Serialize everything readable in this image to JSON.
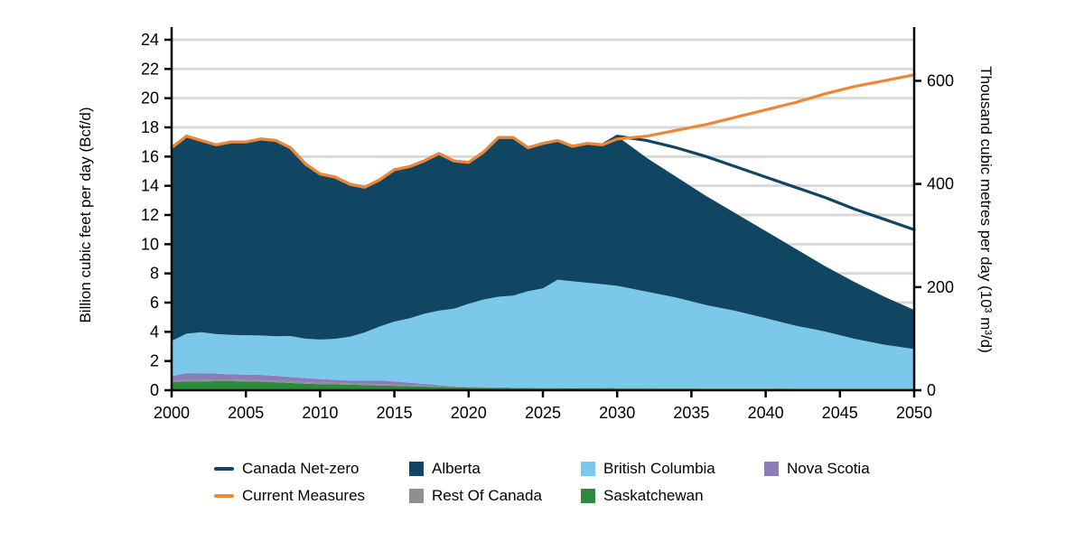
{
  "chart_data": {
    "type": "area",
    "title": "",
    "x_axis": {
      "label": "",
      "min": 2000,
      "max": 2050,
      "ticks": [
        2000,
        2005,
        2010,
        2015,
        2020,
        2025,
        2030,
        2035,
        2040,
        2045,
        2050
      ]
    },
    "y_left": {
      "label": "Billion cubic feet per day (Bcf/d)",
      "min": 0,
      "max": 24,
      "ticks": [
        0,
        2,
        4,
        6,
        8,
        10,
        12,
        14,
        16,
        18,
        20,
        22,
        24
      ]
    },
    "y_right": {
      "label": "Thousand cubic metres per day (10³ m³/d)",
      "ticks": [
        0,
        200,
        400,
        600
      ],
      "units_per_bcf": 28.32
    },
    "style": {
      "grid_color": "#d9d9d9",
      "axis_color": "#000000",
      "background": "#ffffff"
    },
    "years": [
      2000,
      2001,
      2002,
      2003,
      2004,
      2005,
      2006,
      2007,
      2008,
      2009,
      2010,
      2011,
      2012,
      2013,
      2014,
      2015,
      2016,
      2017,
      2018,
      2019,
      2020,
      2021,
      2022,
      2023,
      2024,
      2025,
      2026,
      2027,
      2028,
      2029,
      2030,
      2032,
      2034,
      2036,
      2038,
      2040,
      2042,
      2044,
      2046,
      2048,
      2050
    ],
    "areas": [
      {
        "name": "Saskatchewan",
        "color": "#2b8a3c",
        "values": [
          0.55,
          0.6,
          0.6,
          0.62,
          0.62,
          0.6,
          0.58,
          0.55,
          0.5,
          0.45,
          0.42,
          0.4,
          0.38,
          0.35,
          0.33,
          0.3,
          0.27,
          0.25,
          0.22,
          0.2,
          0.18,
          0.17,
          0.16,
          0.15,
          0.15,
          0.14,
          0.14,
          0.13,
          0.13,
          0.13,
          0.12,
          0.12,
          0.12,
          0.11,
          0.11,
          0.11,
          0.1,
          0.1,
          0.1,
          0.1,
          0.1
        ]
      },
      {
        "name": "Rest Of Canada",
        "color": "#8f8f8f",
        "values": [
          0.12,
          0.12,
          0.12,
          0.12,
          0.12,
          0.12,
          0.12,
          0.11,
          0.11,
          0.1,
          0.1,
          0.1,
          0.09,
          0.09,
          0.08,
          0.08,
          0.07,
          0.06,
          0.05,
          0.05,
          0.04,
          0.04,
          0.04,
          0.03,
          0.03,
          0.03,
          0.03,
          0.03,
          0.03,
          0.03,
          0.03,
          0.03,
          0.02,
          0.02,
          0.02,
          0.02,
          0.02,
          0.02,
          0.02,
          0.02,
          0.02
        ]
      },
      {
        "name": "Nova Scotia",
        "color": "#8d7cba",
        "values": [
          0.3,
          0.45,
          0.45,
          0.4,
          0.35,
          0.35,
          0.35,
          0.33,
          0.3,
          0.28,
          0.25,
          0.22,
          0.2,
          0.22,
          0.25,
          0.22,
          0.18,
          0.12,
          0.08,
          0.03,
          0,
          0,
          0,
          0,
          0,
          0,
          0,
          0,
          0,
          0,
          0,
          0,
          0,
          0,
          0,
          0,
          0,
          0,
          0,
          0,
          0
        ]
      },
      {
        "name": "British Columbia",
        "color": "#7cc8ea",
        "values": [
          2.4,
          2.7,
          2.8,
          2.7,
          2.7,
          2.7,
          2.7,
          2.7,
          2.8,
          2.7,
          2.7,
          2.8,
          3.0,
          3.3,
          3.7,
          4.1,
          4.4,
          4.8,
          5.1,
          5.3,
          5.7,
          6.0,
          6.2,
          6.3,
          6.6,
          6.8,
          7.4,
          7.3,
          7.2,
          7.1,
          7.0,
          6.6,
          6.2,
          5.7,
          5.3,
          4.8,
          4.3,
          3.9,
          3.4,
          3.0,
          2.7
        ]
      },
      {
        "name": "Alberta",
        "color": "#114663",
        "values": [
          13.23,
          13.53,
          13.13,
          12.96,
          13.21,
          13.23,
          13.45,
          13.41,
          12.89,
          11.97,
          11.33,
          11.08,
          10.43,
          9.94,
          10.04,
          10.4,
          10.38,
          10.47,
          10.75,
          10.12,
          9.68,
          10.09,
          10.9,
          10.82,
          9.82,
          9.93,
          9.53,
          9.24,
          9.54,
          9.54,
          10.25,
          9.15,
          8.26,
          7.47,
          6.67,
          5.97,
          5.28,
          4.48,
          3.88,
          3.28,
          2.68
        ]
      }
    ],
    "lines": [
      {
        "name": "Canada Net-zero",
        "color": "#114663",
        "values": [
          16.6,
          17.4,
          17.1,
          16.8,
          17.0,
          17.0,
          17.2,
          17.1,
          16.6,
          15.5,
          14.8,
          14.6,
          14.1,
          13.9,
          14.4,
          15.1,
          15.3,
          15.7,
          16.2,
          15.7,
          15.6,
          16.3,
          17.3,
          17.3,
          16.6,
          16.9,
          17.1,
          16.7,
          16.9,
          16.8,
          17.4,
          17.1,
          16.6,
          16.0,
          15.3,
          14.6,
          13.9,
          13.2,
          12.4,
          11.7,
          11.0
        ]
      },
      {
        "name": "Current Measures",
        "color": "#ef8633",
        "values": [
          16.6,
          17.4,
          17.1,
          16.8,
          17.0,
          17.0,
          17.2,
          17.1,
          16.6,
          15.5,
          14.8,
          14.6,
          14.1,
          13.9,
          14.4,
          15.1,
          15.3,
          15.7,
          16.2,
          15.7,
          15.6,
          16.3,
          17.3,
          17.3,
          16.6,
          16.9,
          17.1,
          16.7,
          16.9,
          16.8,
          17.2,
          17.4,
          17.8,
          18.2,
          18.7,
          19.2,
          19.7,
          20.3,
          20.8,
          21.2,
          21.6
        ]
      }
    ],
    "legend": {
      "rows": [
        [
          {
            "label": "Canada Net-zero",
            "swatch": "line",
            "color": "#114663"
          },
          {
            "label": "Alberta",
            "swatch": "fill",
            "color": "#114663"
          },
          {
            "label": "British Columbia",
            "swatch": "fill",
            "color": "#7cc8ea"
          },
          {
            "label": "Nova Scotia",
            "swatch": "fill",
            "color": "#8d7cba"
          }
        ],
        [
          {
            "label": "Current Measures",
            "swatch": "line",
            "color": "#ef8633"
          },
          {
            "label": "Rest Of Canada",
            "swatch": "fill",
            "color": "#8f8f8f"
          },
          {
            "label": "Saskatchewan",
            "swatch": "fill",
            "color": "#2b8a3c"
          }
        ]
      ]
    }
  }
}
